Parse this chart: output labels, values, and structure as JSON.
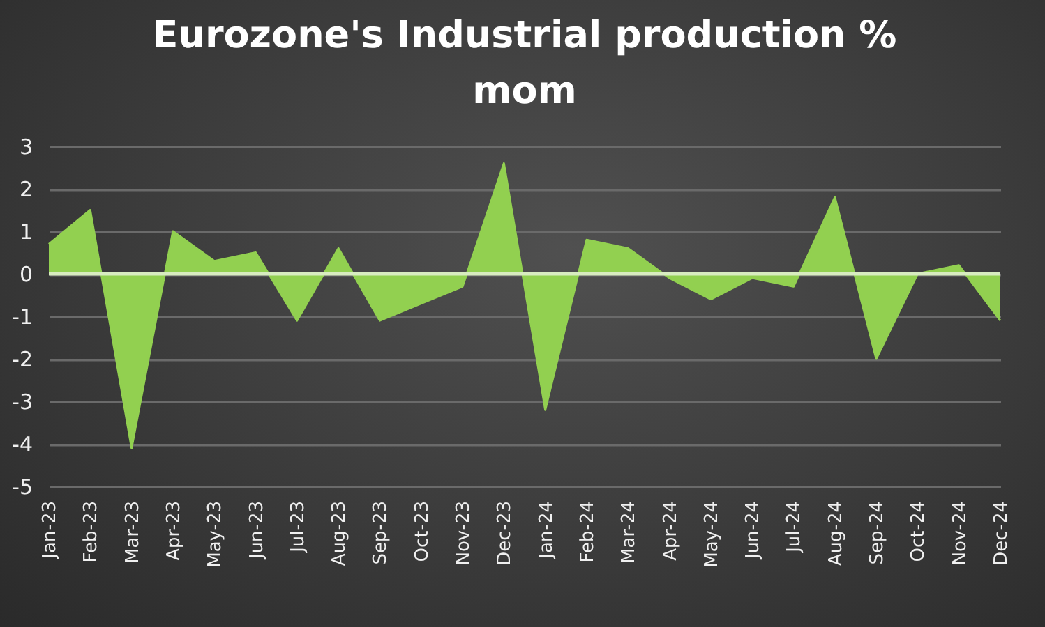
{
  "chart_data": {
    "type": "area",
    "title": [
      "Eurozone's Industrial production %",
      "mom"
    ],
    "categories": [
      "Jan-23",
      "Feb-23",
      "Mar-23",
      "Apr-23",
      "May-23",
      "Jun-23",
      "Jul-23",
      "Aug-23",
      "Sep-23",
      "Oct-23",
      "Nov-23",
      "Dec-23",
      "Jan-24",
      "Feb-24",
      "Mar-24",
      "Apr-24",
      "May-24",
      "Jun-24",
      "Jul-24",
      "Aug-24",
      "Sep-24",
      "Oct-24",
      "Nov-24",
      "Dec-24"
    ],
    "series": [
      {
        "color": "#92d050",
        "values": [
          0.7,
          1.5,
          -4.1,
          1.0,
          0.3,
          0.5,
          -1.1,
          0.6,
          -1.1,
          -0.7,
          -0.3,
          2.6,
          -3.2,
          0.8,
          0.6,
          -0.1,
          -0.6,
          -0.1,
          -0.3,
          1.8,
          -2.0,
          0.0,
          0.2,
          -1.1
        ]
      }
    ],
    "ylim": [
      -5,
      3
    ],
    "yticks": [
      -5,
      -4,
      -3,
      -2,
      -1,
      0,
      1,
      2,
      3
    ],
    "grid": "y",
    "ref_lines": [
      {
        "axis": "y",
        "value": 0,
        "color": "#d8ecc0"
      }
    ]
  }
}
